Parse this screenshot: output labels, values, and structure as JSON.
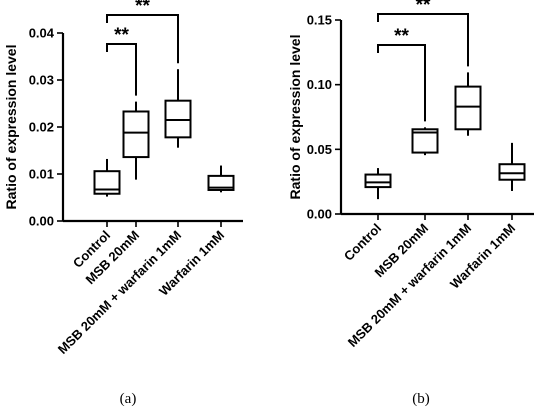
{
  "chart_data": [
    {
      "type": "box",
      "panel_label": "(a)",
      "ylabel": "Ratio of expression level",
      "ylim": [
        0,
        0.04
      ],
      "ytick_labels": [
        "0.00",
        "0.01",
        "0.02",
        "0.03",
        "0.04"
      ],
      "yticks": [
        0,
        0.01,
        0.02,
        0.03,
        0.04
      ],
      "categories": [
        "Control",
        "MSB 20mM",
        "MSB 20mM + warfarin 1mM",
        "Warfarin 1mM"
      ],
      "boxes": [
        {
          "min": 0.0052,
          "q1": 0.0058,
          "median": 0.0067,
          "q3": 0.0106,
          "max": 0.0132
        },
        {
          "min": 0.0088,
          "q1": 0.0136,
          "median": 0.0188,
          "q3": 0.0233,
          "max": 0.0254
        },
        {
          "min": 0.0156,
          "q1": 0.0178,
          "median": 0.0215,
          "q3": 0.0256,
          "max": 0.0323
        },
        {
          "min": 0.0061,
          "q1": 0.0066,
          "median": 0.0071,
          "q3": 0.0096,
          "max": 0.0118
        }
      ],
      "significance": [
        {
          "from": 0,
          "to": 1,
          "label": "**"
        },
        {
          "from": 0,
          "to": 2,
          "label": "**"
        }
      ]
    },
    {
      "type": "box",
      "panel_label": "(b)",
      "ylabel": "Ratio of expression level",
      "ylim": [
        0,
        0.15
      ],
      "ytick_labels": [
        "0.00",
        "0.05",
        "0.10",
        "0.15"
      ],
      "yticks": [
        0,
        0.05,
        0.1,
        0.15
      ],
      "categories": [
        "Control",
        "MSB 20mM",
        "MSB 20mM + warfarin 1mM",
        "Warfarin 1mM"
      ],
      "boxes": [
        {
          "min": 0.0115,
          "q1": 0.0208,
          "median": 0.0245,
          "q3": 0.0305,
          "max": 0.0355
        },
        {
          "min": 0.0455,
          "q1": 0.0475,
          "median": 0.063,
          "q3": 0.0655,
          "max": 0.067
        },
        {
          "min": 0.0605,
          "q1": 0.0655,
          "median": 0.083,
          "q3": 0.0985,
          "max": 0.1095
        },
        {
          "min": 0.0178,
          "q1": 0.0265,
          "median": 0.0315,
          "q3": 0.0385,
          "max": 0.055
        }
      ],
      "significance": [
        {
          "from": 0,
          "to": 1,
          "label": "**"
        },
        {
          "from": 0,
          "to": 2,
          "label": "**"
        }
      ]
    }
  ]
}
